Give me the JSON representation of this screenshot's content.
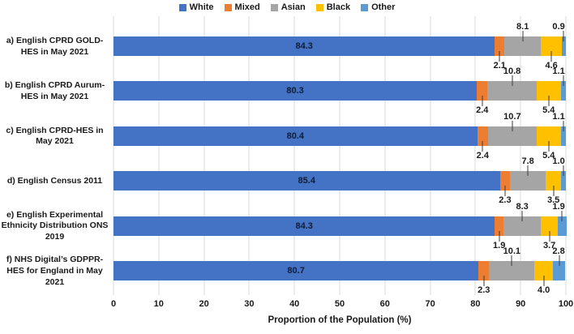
{
  "chart_data": {
    "type": "bar",
    "orientation": "horizontal",
    "stacked": true,
    "title": "",
    "xlabel": "Proportion of the Population (%)",
    "xlim": [
      0,
      100
    ],
    "xticks": [
      0,
      10,
      20,
      30,
      40,
      50,
      60,
      70,
      80,
      90,
      100
    ],
    "grid": "vertical-on",
    "legend_position": "top-center",
    "categories": [
      "a) English CPRD GOLD-HES in May 2021",
      "b) English CPRD Aurum-HES in May 2021",
      "c) English CPRD-HES in May 2021",
      "d) English Census 2011",
      "e) English Experimental Ethnicity Distribution ONS 2019",
      "f) NHS Digital’s GDPPR-HES for England in May 2021"
    ],
    "series": [
      {
        "name": "White",
        "color": "#4472C4",
        "label_position": "inside",
        "values": [
          "84.3",
          "80.3",
          "80.4",
          "85.4",
          "84.3",
          "80.7"
        ]
      },
      {
        "name": "Mixed",
        "color": "#ED7D31",
        "label_position": "below",
        "values": [
          "2.1",
          "2.4",
          "2.4",
          "2.3",
          "1.9",
          "2.3"
        ]
      },
      {
        "name": "Asian",
        "color": "#A5A5A5",
        "label_position": "above",
        "values": [
          "8.1",
          "10.8",
          "10.7",
          "7.8",
          "8.3",
          "10.1"
        ]
      },
      {
        "name": "Black",
        "color": "#FFC000",
        "label_position": "below",
        "values": [
          "4.6",
          "5.4",
          "5.4",
          "3.5",
          "3.7",
          "4.0"
        ]
      },
      {
        "name": "Other",
        "color": "#5B9BD5",
        "label_position": "above",
        "values": [
          "0.9",
          "1.1",
          "1.1",
          "1.0",
          "1.9",
          "2.8"
        ]
      }
    ],
    "colors": {
      "gridline": "#d9d9d9",
      "inside_label_text": "#0f1e38",
      "callout_line": "#3b3b3b"
    }
  }
}
